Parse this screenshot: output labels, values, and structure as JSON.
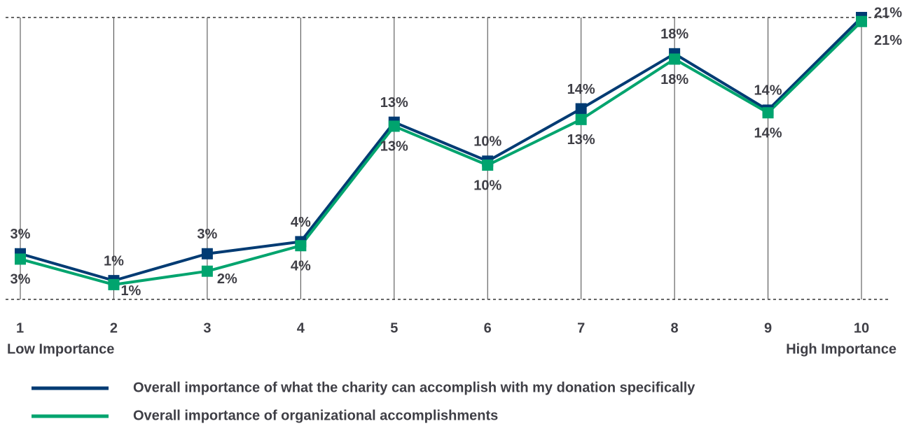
{
  "chart_data": {
    "type": "line",
    "categories": [
      "1",
      "2",
      "3",
      "4",
      "5",
      "6",
      "7",
      "8",
      "9",
      "10"
    ],
    "x_start_label": "Low Importance",
    "x_end_label": "High Importance",
    "ylim": [
      0,
      21
    ],
    "grid": true,
    "series": [
      {
        "name": "Overall importance of what the charity can accomplish with my donation specifically",
        "color": "#003b73",
        "values": [
          3.4,
          1.4,
          3.4,
          4.3,
          13.2,
          10.3,
          14.2,
          18.3,
          14.1,
          21
        ],
        "value_labels": [
          "3%",
          "1%",
          "3%",
          "4%",
          "13%",
          "10%",
          "14%",
          "18%",
          "14%",
          "21%"
        ]
      },
      {
        "name": "Overall importance of organizational accomplishments",
        "color": "#00a46e",
        "values": [
          3.0,
          1.1,
          2.1,
          4.0,
          12.9,
          10.0,
          13.4,
          17.9,
          13.9,
          20.7
        ],
        "value_labels": [
          "3%",
          "1%",
          "2%",
          "4%",
          "13%",
          "10%",
          "13%",
          "18%",
          "14%",
          "21%"
        ]
      }
    ]
  }
}
